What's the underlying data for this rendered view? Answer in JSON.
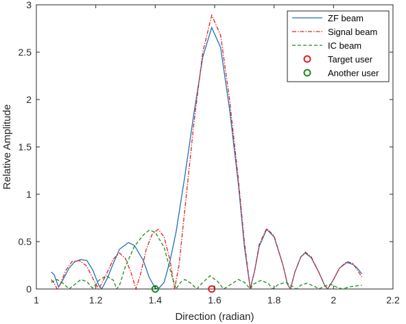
{
  "chart_data": {
    "type": "line",
    "xlabel": "Direction (radian)",
    "ylabel": "Relative Amplitude",
    "xlim": [
      1,
      2.2
    ],
    "ylim": [
      0,
      3
    ],
    "xticks": [
      "1",
      "1.2",
      "1.4",
      "1.6",
      "1.8",
      "2",
      "2.2"
    ],
    "yticks": [
      "0",
      "0.5",
      "1",
      "1.5",
      "2",
      "2.5",
      "3"
    ],
    "grid": false,
    "legend_position": "top-right",
    "series": [
      {
        "name": "ZF beam",
        "color": "#1f6fb4",
        "style": "solid",
        "points": [
          [
            1.05,
            0.18
          ],
          [
            1.06,
            0.15
          ],
          [
            1.075,
            0.02
          ],
          [
            1.09,
            0.1
          ],
          [
            1.11,
            0.22
          ],
          [
            1.13,
            0.29
          ],
          [
            1.15,
            0.31
          ],
          [
            1.17,
            0.3
          ],
          [
            1.19,
            0.2
          ],
          [
            1.21,
            0.04
          ],
          [
            1.22,
            0.0
          ],
          [
            1.24,
            0.12
          ],
          [
            1.26,
            0.28
          ],
          [
            1.28,
            0.42
          ],
          [
            1.31,
            0.49
          ],
          [
            1.33,
            0.46
          ],
          [
            1.36,
            0.3
          ],
          [
            1.38,
            0.12
          ],
          [
            1.4,
            0.01
          ],
          [
            1.41,
            0.0
          ],
          [
            1.43,
            0.07
          ],
          [
            1.45,
            0.3
          ],
          [
            1.47,
            0.6
          ],
          [
            1.5,
            1.2
          ],
          [
            1.53,
            1.85
          ],
          [
            1.56,
            2.45
          ],
          [
            1.59,
            2.76
          ],
          [
            1.62,
            2.55
          ],
          [
            1.65,
            1.9
          ],
          [
            1.68,
            1.1
          ],
          [
            1.7,
            0.45
          ],
          [
            1.72,
            0.0
          ],
          [
            1.735,
            0.2
          ],
          [
            1.75,
            0.45
          ],
          [
            1.775,
            0.63
          ],
          [
            1.8,
            0.55
          ],
          [
            1.83,
            0.25
          ],
          [
            1.845,
            0.05
          ],
          [
            1.855,
            0.0
          ],
          [
            1.87,
            0.18
          ],
          [
            1.89,
            0.34
          ],
          [
            1.905,
            0.38
          ],
          [
            1.925,
            0.33
          ],
          [
            1.95,
            0.18
          ],
          [
            1.97,
            0.04
          ],
          [
            1.98,
            0.0
          ],
          [
            2.0,
            0.1
          ],
          [
            2.02,
            0.22
          ],
          [
            2.045,
            0.28
          ],
          [
            2.065,
            0.26
          ],
          [
            2.08,
            0.22
          ],
          [
            2.095,
            0.16
          ]
        ]
      },
      {
        "name": "Signal beam",
        "color": "#e02020",
        "style": "dashdot",
        "points": [
          [
            1.05,
            0.1
          ],
          [
            1.06,
            0.06
          ],
          [
            1.07,
            0.0
          ],
          [
            1.08,
            0.05
          ],
          [
            1.1,
            0.2
          ],
          [
            1.12,
            0.29
          ],
          [
            1.145,
            0.3
          ],
          [
            1.17,
            0.24
          ],
          [
            1.195,
            0.08
          ],
          [
            1.21,
            0.0
          ],
          [
            1.23,
            0.12
          ],
          [
            1.26,
            0.32
          ],
          [
            1.28,
            0.38
          ],
          [
            1.3,
            0.32
          ],
          [
            1.32,
            0.16
          ],
          [
            1.335,
            0.0
          ],
          [
            1.35,
            0.15
          ],
          [
            1.37,
            0.42
          ],
          [
            1.39,
            0.58
          ],
          [
            1.41,
            0.63
          ],
          [
            1.43,
            0.55
          ],
          [
            1.45,
            0.3
          ],
          [
            1.465,
            0.0
          ],
          [
            1.48,
            0.25
          ],
          [
            1.5,
            0.85
          ],
          [
            1.53,
            1.75
          ],
          [
            1.56,
            2.5
          ],
          [
            1.59,
            2.89
          ],
          [
            1.62,
            2.68
          ],
          [
            1.65,
            2.0
          ],
          [
            1.68,
            1.15
          ],
          [
            1.7,
            0.5
          ],
          [
            1.72,
            0.0
          ],
          [
            1.735,
            0.2
          ],
          [
            1.75,
            0.47
          ],
          [
            1.775,
            0.64
          ],
          [
            1.8,
            0.56
          ],
          [
            1.83,
            0.25
          ],
          [
            1.845,
            0.05
          ],
          [
            1.855,
            0.0
          ],
          [
            1.87,
            0.18
          ],
          [
            1.89,
            0.34
          ],
          [
            1.905,
            0.39
          ],
          [
            1.925,
            0.34
          ],
          [
            1.95,
            0.18
          ],
          [
            1.97,
            0.04
          ],
          [
            1.98,
            0.0
          ],
          [
            2.0,
            0.1
          ],
          [
            2.02,
            0.22
          ],
          [
            2.045,
            0.29
          ],
          [
            2.065,
            0.27
          ],
          [
            2.08,
            0.2
          ],
          [
            2.095,
            0.13
          ]
        ]
      },
      {
        "name": "IC beam",
        "color": "#1a8a1a",
        "style": "dashed",
        "points": [
          [
            1.05,
            0.07
          ],
          [
            1.07,
            0.1
          ],
          [
            1.09,
            0.06
          ],
          [
            1.11,
            0.0
          ],
          [
            1.13,
            0.05
          ],
          [
            1.15,
            0.1
          ],
          [
            1.17,
            0.08
          ],
          [
            1.185,
            0.02
          ],
          [
            1.19,
            0.01
          ],
          [
            1.21,
            0.09
          ],
          [
            1.235,
            0.14
          ],
          [
            1.26,
            0.09
          ],
          [
            1.27,
            0.0
          ],
          [
            1.28,
            0.04
          ],
          [
            1.3,
            0.24
          ],
          [
            1.33,
            0.45
          ],
          [
            1.36,
            0.57
          ],
          [
            1.38,
            0.62
          ],
          [
            1.4,
            0.6
          ],
          [
            1.43,
            0.44
          ],
          [
            1.455,
            0.15
          ],
          [
            1.47,
            0.0
          ],
          [
            1.485,
            0.07
          ],
          [
            1.5,
            0.1
          ],
          [
            1.52,
            0.06
          ],
          [
            1.54,
            0.0
          ],
          [
            1.56,
            0.07
          ],
          [
            1.585,
            0.14
          ],
          [
            1.61,
            0.08
          ],
          [
            1.63,
            0.0
          ],
          [
            1.65,
            0.04
          ],
          [
            1.68,
            0.1
          ],
          [
            1.7,
            0.07
          ],
          [
            1.72,
            0.0
          ],
          [
            1.73,
            0.05
          ],
          [
            1.755,
            0.09
          ],
          [
            1.78,
            0.06
          ],
          [
            1.795,
            0.0
          ],
          [
            1.815,
            0.05
          ],
          [
            1.84,
            0.07
          ],
          [
            1.86,
            0.03
          ],
          [
            1.875,
            0.0
          ],
          [
            1.89,
            0.04
          ],
          [
            1.91,
            0.06
          ],
          [
            1.935,
            0.03
          ],
          [
            1.95,
            0.0
          ],
          [
            1.97,
            0.03
          ],
          [
            1.99,
            0.05
          ],
          [
            2.01,
            0.02
          ],
          [
            2.03,
            0.0
          ],
          [
            2.05,
            0.02
          ],
          [
            2.07,
            0.03
          ],
          [
            2.095,
            0.04
          ]
        ]
      }
    ],
    "markers": [
      {
        "name": "Target user",
        "color": "#e02020",
        "x": 1.59,
        "y": 0.0
      },
      {
        "name": "Another user",
        "color": "#1a8a1a",
        "x": 1.4,
        "y": 0.0
      }
    ]
  }
}
